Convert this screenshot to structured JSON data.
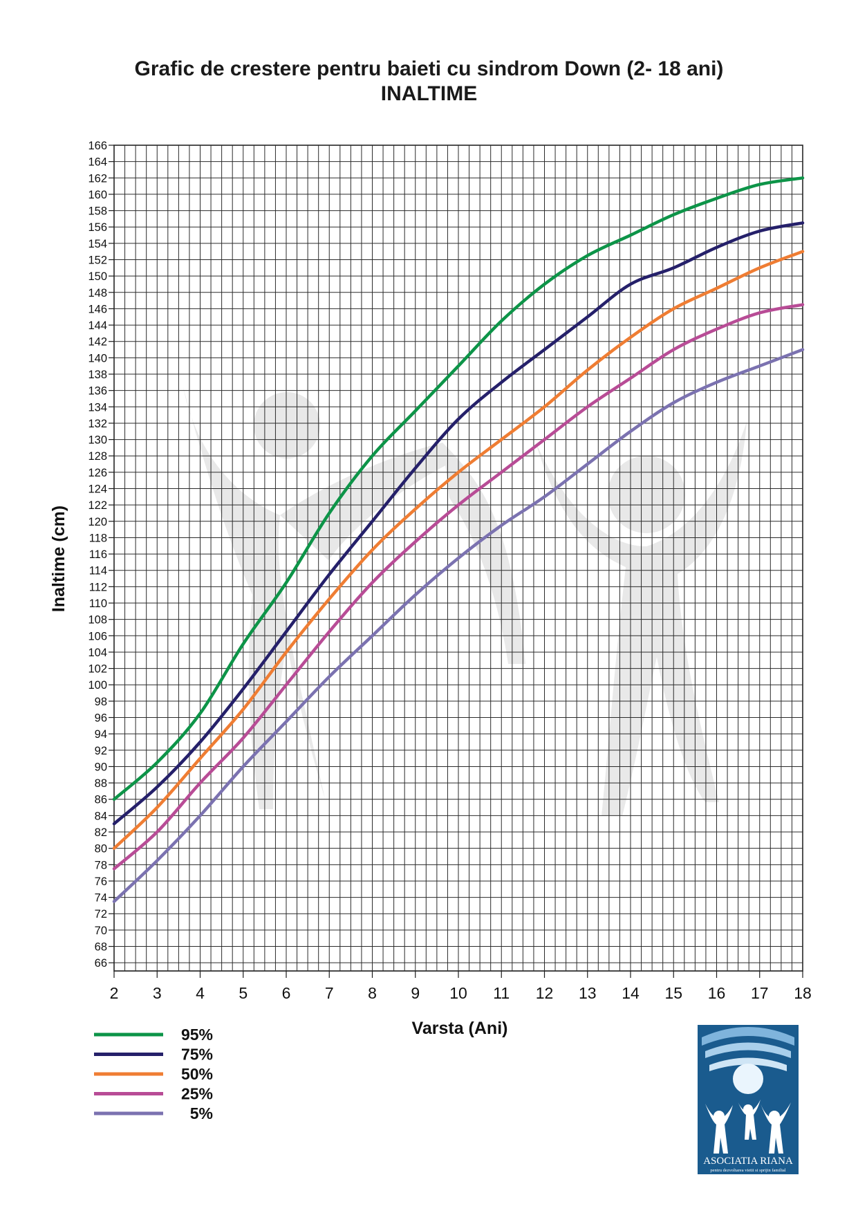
{
  "title": "Grafic de crestere pentru baieti cu sindrom Down (2- 18 ani)",
  "subtitle": "INALTIME",
  "chart_data": {
    "type": "line",
    "title": "Grafic de crestere pentru baieti cu sindrom Down (2- 18 ani)",
    "subtitle": "INALTIME",
    "xlabel": "Varsta (Ani)",
    "ylabel": "Inaltime (cm)",
    "xlim": [
      2,
      18
    ],
    "ylim": [
      65,
      166
    ],
    "grid": true,
    "legend_position": "bottom-left",
    "x_ticks": [
      2,
      3,
      4,
      5,
      6,
      7,
      8,
      9,
      10,
      11,
      12,
      13,
      14,
      15,
      16,
      17,
      18
    ],
    "y_ticks": [
      66,
      68,
      70,
      72,
      74,
      76,
      78,
      80,
      82,
      84,
      86,
      88,
      90,
      92,
      94,
      96,
      98,
      100,
      102,
      104,
      106,
      108,
      110,
      112,
      114,
      116,
      118,
      120,
      122,
      124,
      126,
      128,
      130,
      132,
      134,
      136,
      138,
      140,
      142,
      144,
      146,
      148,
      150,
      152,
      154,
      156,
      158,
      160,
      162,
      164,
      166
    ],
    "x": [
      2,
      3,
      4,
      5,
      6,
      7,
      8,
      9,
      10,
      11,
      12,
      13,
      14,
      15,
      16,
      17,
      18
    ],
    "series": [
      {
        "name": "95%",
        "color": "#0d9448",
        "values": [
          86,
          90.5,
          96.5,
          105,
          112.5,
          121,
          128,
          133.5,
          139,
          144.5,
          149,
          152.5,
          155,
          157.5,
          159.5,
          161.2,
          162
        ]
      },
      {
        "name": "75%",
        "color": "#25206a",
        "values": [
          83,
          87.5,
          93,
          99.5,
          106.5,
          113.5,
          120,
          126.5,
          132.5,
          137,
          141,
          145,
          149,
          151,
          153.5,
          155.5,
          156.5
        ]
      },
      {
        "name": "50%",
        "color": "#ef7d33",
        "values": [
          80,
          85,
          91,
          97,
          104,
          110.5,
          116.5,
          121.5,
          126,
          130,
          134,
          138.5,
          142.5,
          146,
          148.5,
          151,
          153
        ]
      },
      {
        "name": "25%",
        "color": "#b84c96",
        "values": [
          77.5,
          82,
          88,
          93.5,
          100,
          106.5,
          112.5,
          117.5,
          122,
          126,
          130,
          134,
          137.5,
          141,
          143.5,
          145.5,
          146.5
        ]
      },
      {
        "name": "5%",
        "color": "#7b72b0",
        "values": [
          73.5,
          78.5,
          84,
          90,
          95.5,
          101,
          106,
          111,
          115.5,
          119.5,
          123,
          127,
          131,
          134.5,
          137,
          139,
          141
        ]
      }
    ]
  },
  "legend": [
    {
      "label": "95%",
      "color": "#0d9448"
    },
    {
      "label": "75%",
      "color": "#25206a"
    },
    {
      "label": "50%",
      "color": "#ef7d33"
    },
    {
      "label": "25%",
      "color": "#b84c96"
    },
    {
      "label": "5%",
      "color": "#7b72b0"
    }
  ],
  "logo": {
    "name": "ASOCIATIA RIANA",
    "tagline": "pentru dezvoltarea vietii si sprijin familial",
    "color": "#1a5b8e"
  }
}
